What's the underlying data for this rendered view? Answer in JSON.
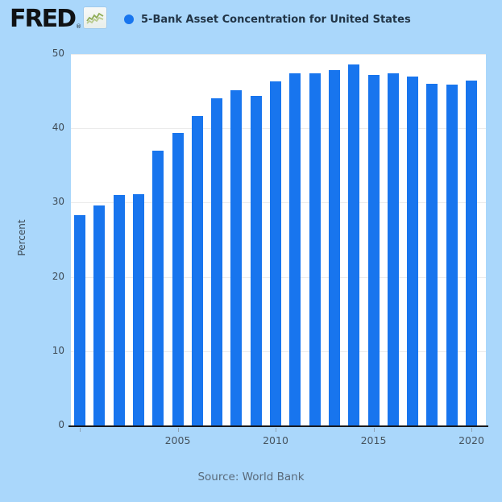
{
  "header": {
    "logo_text": "FRED",
    "registered_mark": "®",
    "series_title": "5-Bank Asset Concentration for United States"
  },
  "chart_data": {
    "type": "bar",
    "title": "5-Bank Asset Concentration for United States",
    "xlabel": "",
    "ylabel": "Percent",
    "ylim": [
      0,
      50
    ],
    "yticks": [
      0,
      10,
      20,
      30,
      40,
      50
    ],
    "categories": [
      2000,
      2001,
      2002,
      2003,
      2004,
      2005,
      2006,
      2007,
      2008,
      2009,
      2010,
      2011,
      2012,
      2013,
      2014,
      2015,
      2016,
      2017,
      2018,
      2019,
      2020
    ],
    "values": [
      28.3,
      29.6,
      31.0,
      31.1,
      37.0,
      39.4,
      41.7,
      44.0,
      45.1,
      44.4,
      46.3,
      47.4,
      47.4,
      47.8,
      48.6,
      47.2,
      47.4,
      47.0,
      46.0,
      45.9,
      46.4
    ],
    "xtick_labels": [
      "2005",
      "2010",
      "2015",
      "2020"
    ],
    "tick_mark_years": [
      2000,
      2005,
      2010,
      2015,
      2020
    ],
    "grid": true,
    "legend_position": "top",
    "bar_color": "#1875ee",
    "plot_background": "#ffffff",
    "page_background": "#aad7fb"
  },
  "footer": {
    "source_label": "Source: World Bank"
  }
}
